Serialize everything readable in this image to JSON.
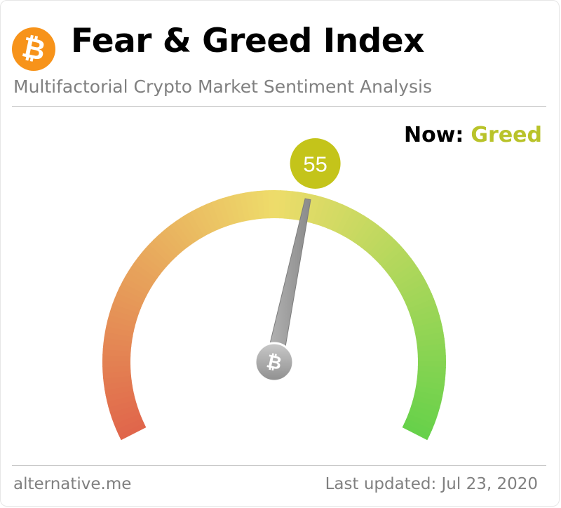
{
  "header": {
    "logo_glyph": "₿",
    "logo_icon": "bitcoin-icon",
    "title": "Fear & Greed Index",
    "subtitle": "Multifactorial Crypto Market Sentiment Analysis"
  },
  "status": {
    "now_label": "Now:",
    "now_value": "Greed",
    "now_color": "#b9c32a"
  },
  "gauge": {
    "value": 55,
    "value_label": "55",
    "min": 0,
    "max": 100,
    "badge_color": "#c4c41a",
    "hub_glyph": "₿",
    "hub_icon": "bitcoin-icon",
    "colors": {
      "fear": "#e0654b",
      "neutral": "#eedc6a",
      "greed": "#66d14a"
    }
  },
  "footer": {
    "source": "alternative.me",
    "last_updated": "Last updated: Jul 23, 2020"
  }
}
